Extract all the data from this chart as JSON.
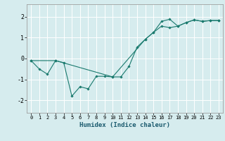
{
  "title": "",
  "xlabel": "Humidex (Indice chaleur)",
  "x_ticks": [
    0,
    1,
    2,
    3,
    4,
    5,
    6,
    7,
    8,
    9,
    10,
    11,
    12,
    13,
    14,
    15,
    16,
    17,
    18,
    19,
    20,
    21,
    22,
    23
  ],
  "xlim": [
    -0.5,
    23.5
  ],
  "ylim": [
    -2.6,
    2.6
  ],
  "yticks": [
    -2,
    -1,
    0,
    1,
    2
  ],
  "bg_color": "#d6ecee",
  "grid_color": "#ffffff",
  "spine_color": "#a0a0a0",
  "line_color": "#1a7a6e",
  "line1_x": [
    0,
    1,
    2,
    3,
    4,
    5,
    6,
    7,
    8,
    9,
    10,
    11,
    12,
    13,
    14,
    15,
    16,
    17,
    18,
    19,
    20,
    21,
    22,
    23
  ],
  "line1_y": [
    -0.1,
    -0.5,
    -0.75,
    -0.1,
    -0.2,
    -1.8,
    -1.35,
    -1.45,
    -0.85,
    -0.85,
    -0.88,
    -0.88,
    -0.38,
    0.55,
    0.92,
    1.25,
    1.78,
    1.88,
    1.55,
    1.72,
    1.85,
    1.78,
    1.82,
    1.82
  ],
  "line2_x": [
    0,
    3,
    10,
    14,
    15,
    16,
    17,
    18,
    19,
    20,
    21,
    22,
    23
  ],
  "line2_y": [
    -0.1,
    -0.1,
    -0.88,
    0.92,
    1.25,
    1.55,
    1.48,
    1.55,
    1.72,
    1.85,
    1.78,
    1.82,
    1.82
  ]
}
